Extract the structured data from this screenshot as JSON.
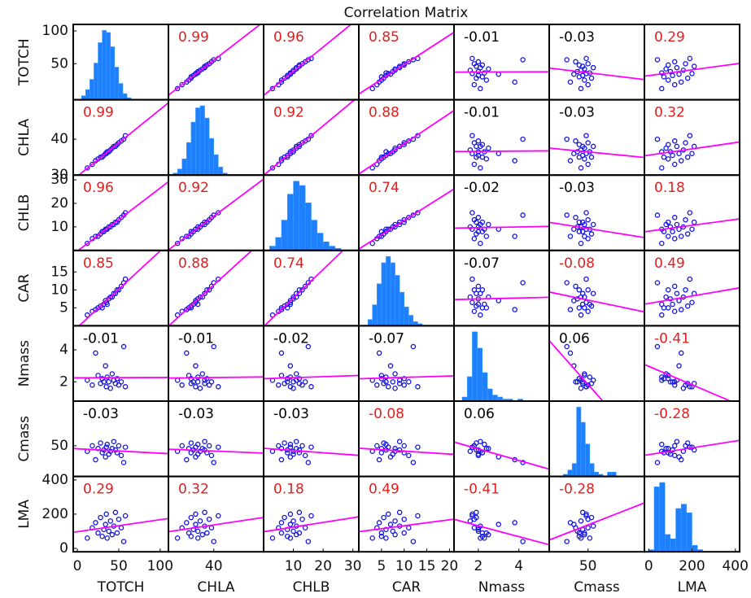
{
  "chart_data": {
    "type": "scatter_matrix",
    "title": "Correlation Matrix",
    "point_color": "#1414e6",
    "line_color": "#ff00ff",
    "bar_color": "#1e80ff",
    "name_color": "#2b2b9a",
    "variables": [
      {
        "name": "TOTCH",
        "lim": [
          -5,
          110
        ],
        "xticks": [
          0,
          50,
          100
        ],
        "yticks": [
          50,
          100
        ],
        "values": [
          12,
          18,
          22,
          25,
          28,
          30,
          32,
          34,
          35,
          36,
          38,
          40,
          42,
          44,
          46,
          48,
          50,
          53,
          56,
          58
        ],
        "hist_bins": [
          5,
          10,
          15,
          20,
          25,
          30,
          35,
          40,
          45,
          50,
          55,
          60,
          65
        ],
        "hist_counts": [
          2,
          5,
          10,
          18,
          28,
          34,
          33,
          26,
          16,
          8,
          3,
          1
        ]
      },
      {
        "name": "CHLA",
        "lim": [
          30,
          51
        ],
        "xticks": [
          40
        ],
        "yticks": [
          30,
          40
        ],
        "values": [
          32,
          33,
          34,
          34.5,
          35,
          35,
          35.5,
          36,
          36,
          36.5,
          36.5,
          37,
          37.5,
          38,
          38,
          38.5,
          39,
          39.5,
          40,
          41
        ],
        "hist_bins": [
          31,
          32,
          33,
          34,
          35,
          36,
          37,
          38,
          39,
          40,
          41,
          42,
          43
        ],
        "hist_counts": [
          1,
          3,
          8,
          16,
          26,
          33,
          34,
          28,
          18,
          10,
          4,
          1
        ]
      },
      {
        "name": "CHLB",
        "lim": [
          0,
          32
        ],
        "xticks": [
          10,
          20,
          30
        ],
        "yticks": [
          10,
          20,
          30
        ],
        "values": [
          3,
          5,
          6,
          6,
          7,
          8,
          8,
          9,
          9,
          9,
          10,
          10,
          11,
          11,
          12,
          12,
          13,
          14,
          15,
          16
        ],
        "hist_bins": [
          2,
          4,
          6,
          8,
          10,
          12,
          14,
          16,
          18,
          20,
          22,
          24,
          26
        ],
        "hist_counts": [
          2,
          6,
          14,
          26,
          32,
          30,
          22,
          14,
          8,
          4,
          2,
          1
        ]
      },
      {
        "name": "CAR",
        "lim": [
          0,
          21
        ],
        "xticks": [
          5,
          10,
          15,
          20
        ],
        "yticks": [
          5,
          10,
          15
        ],
        "values": [
          3,
          4,
          4.5,
          5,
          5.5,
          5,
          6,
          7,
          6.5,
          6,
          7.5,
          8,
          8,
          9,
          9,
          10,
          10,
          11,
          12,
          13
        ],
        "hist_bins": [
          2,
          3,
          4,
          5,
          6,
          7,
          8,
          9,
          10,
          11,
          12,
          13,
          14
        ],
        "hist_counts": [
          3,
          10,
          20,
          30,
          33,
          30,
          24,
          16,
          9,
          5,
          2,
          1
        ]
      },
      {
        "name": "Nmass",
        "lim": [
          0.8,
          5.5
        ],
        "xticks": [
          2,
          4
        ],
        "yticks": [
          2,
          4
        ],
        "values": [
          2.1,
          1.8,
          3.8,
          2.4,
          1.9,
          2.2,
          2.0,
          3.0,
          1.7,
          2.3,
          2.0,
          1.6,
          2.5,
          2.1,
          1.9,
          2.2,
          1.8,
          2.0,
          4.2,
          1.7
        ],
        "hist_bins": [
          1.2,
          1.45,
          1.7,
          1.95,
          2.2,
          2.45,
          2.7,
          2.95,
          3.2,
          3.45,
          3.7,
          3.95,
          4.2
        ],
        "hist_counts": [
          2,
          12,
          34,
          26,
          14,
          6,
          3,
          2,
          1,
          1,
          0,
          1
        ]
      },
      {
        "name": "Cmass",
        "lim": [
          28,
          82
        ],
        "xticks": [
          50
        ],
        "yticks": [
          50
        ],
        "values": [
          46,
          50,
          40,
          48,
          52,
          45,
          47,
          42,
          49,
          51,
          44,
          46,
          48,
          53,
          47,
          45,
          50,
          43,
          38,
          49
        ],
        "hist_bins": [
          36,
          38.5,
          41,
          43.5,
          46,
          48.5,
          51,
          53.5,
          56,
          58.5,
          61,
          63.5,
          66
        ],
        "hist_counts": [
          1,
          3,
          6,
          32,
          25,
          15,
          6,
          2,
          1,
          0,
          2,
          2
        ]
      },
      {
        "name": "LMA",
        "lim": [
          -20,
          420
        ],
        "xticks": [
          0,
          200,
          400
        ],
        "yticks": [
          0,
          200,
          400
        ],
        "values": [
          60,
          120,
          150,
          90,
          180,
          70,
          110,
          140,
          200,
          60,
          100,
          160,
          80,
          130,
          210,
          90,
          170,
          120,
          40,
          190
        ],
        "hist_bins": [
          0,
          25,
          50,
          75,
          100,
          125,
          150,
          175,
          200,
          225,
          250,
          275,
          300
        ],
        "hist_counts": [
          1,
          30,
          32,
          8,
          6,
          20,
          22,
          18,
          3,
          1,
          0,
          0
        ]
      }
    ],
    "correlations": [
      [
        null,
        0.99,
        0.96,
        0.85,
        -0.01,
        -0.03,
        0.29
      ],
      [
        0.99,
        null,
        0.92,
        0.88,
        -0.01,
        -0.03,
        0.32
      ],
      [
        0.96,
        0.92,
        null,
        0.74,
        -0.02,
        -0.03,
        0.18
      ],
      [
        0.85,
        0.88,
        0.74,
        null,
        -0.07,
        -0.08,
        0.49
      ],
      [
        -0.01,
        -0.01,
        -0.02,
        -0.07,
        null,
        0.06,
        -0.41
      ],
      [
        -0.03,
        -0.03,
        -0.03,
        -0.08,
        0.06,
        null,
        -0.28
      ],
      [
        0.29,
        0.32,
        0.18,
        0.49,
        -0.41,
        -0.28,
        null
      ]
    ],
    "r_colors": [
      [
        null,
        "#e02020",
        "#e02020",
        "#e02020",
        "#000000",
        "#000000",
        "#e02020"
      ],
      [
        "#e02020",
        null,
        "#e02020",
        "#e02020",
        "#000000",
        "#000000",
        "#e02020"
      ],
      [
        "#e02020",
        "#e02020",
        null,
        "#e02020",
        "#000000",
        "#000000",
        "#e02020"
      ],
      [
        "#e02020",
        "#e02020",
        "#e02020",
        null,
        "#000000",
        "#e02020",
        "#e02020"
      ],
      [
        "#000000",
        "#000000",
        "#000000",
        "#000000",
        null,
        "#000000",
        "#e02020"
      ],
      [
        "#000000",
        "#000000",
        "#000000",
        "#e02020",
        "#000000",
        null,
        "#e02020"
      ],
      [
        "#e02020",
        "#e02020",
        "#e02020",
        "#e02020",
        "#e02020",
        "#e02020",
        null
      ]
    ]
  }
}
